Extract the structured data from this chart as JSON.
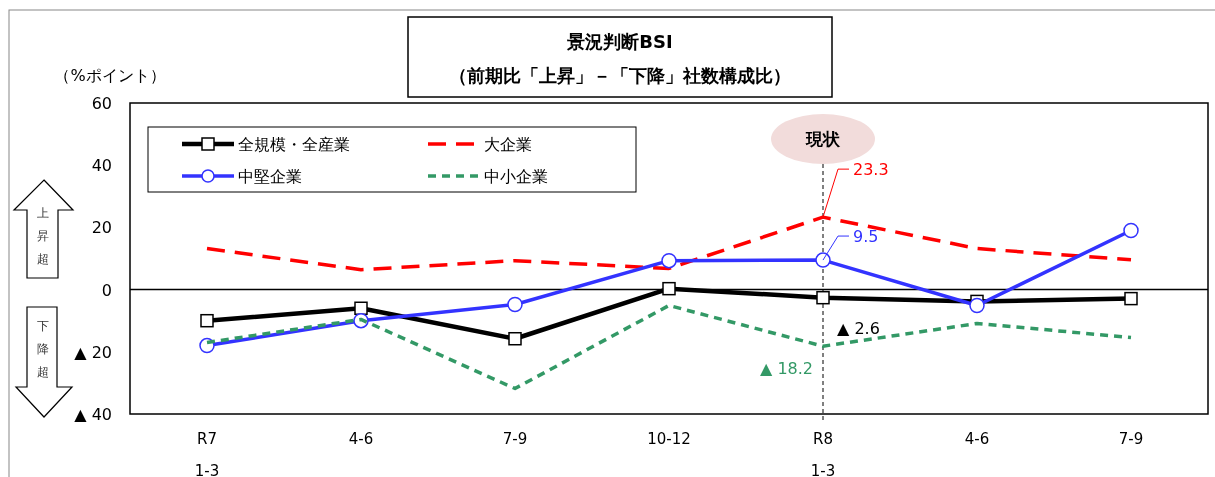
{
  "chart_data": {
    "type": "line",
    "title": "景況判断BSI",
    "subtitle": "（前期比「上昇」－「下降」社数構成比）",
    "ylabel": "（%ポイント）",
    "categories": [
      "R7\n1-3",
      "4-6",
      "7-9",
      "10-12",
      "R8\n1-3",
      "4-6",
      "7-9"
    ],
    "ylim": [
      -40,
      60
    ],
    "yticks": [
      60,
      40,
      20,
      0,
      {
        "value": -20,
        "label": "▲ 20"
      },
      {
        "value": -40,
        "label": "▲ 40"
      }
    ],
    "grid": false,
    "legend": "top left",
    "series": [
      {
        "name": "全規模・全産業",
        "color": "#000000",
        "marker": "square",
        "line_style": "solid",
        "values": [
          -10,
          -6,
          -15.8,
          0.3,
          -2.6,
          -3.8,
          -2.9
        ]
      },
      {
        "name": "大企業",
        "color": "#ff0000",
        "marker": "none",
        "line_style": "dashed",
        "values": [
          13.2,
          6.4,
          9.3,
          6.8,
          23.3,
          13.2,
          9.6
        ],
        "value_labels": [
          null,
          null,
          null,
          null,
          "23.3",
          null,
          null
        ]
      },
      {
        "name": "中堅企業",
        "color": "#3333ff",
        "marker": "circle",
        "line_style": "solid",
        "values": [
          -18,
          -10,
          -4.8,
          9.3,
          9.5,
          -5.1,
          19
        ],
        "value_labels": [
          null,
          null,
          null,
          null,
          "9.5",
          null,
          null
        ]
      },
      {
        "name": "中小企業",
        "color": "#339966",
        "marker": "none",
        "line_style": "dotted",
        "values": [
          -17,
          -9.6,
          -31.8,
          -5.1,
          -18.2,
          -10.9,
          -15.4
        ]
      }
    ],
    "ref_lines": [
      {
        "axis": "x",
        "value": "R8\n1-3",
        "label": "現状",
        "line_style": "dashed"
      }
    ],
    "annotations": [
      "上昇超",
      "下降超",
      {
        "text": "▲ 2.6",
        "x": "R8\n1-3",
        "y": -2.6
      },
      {
        "text": "▲ 18.2",
        "x": "R8\n1-3",
        "y": -18.2
      }
    ]
  }
}
